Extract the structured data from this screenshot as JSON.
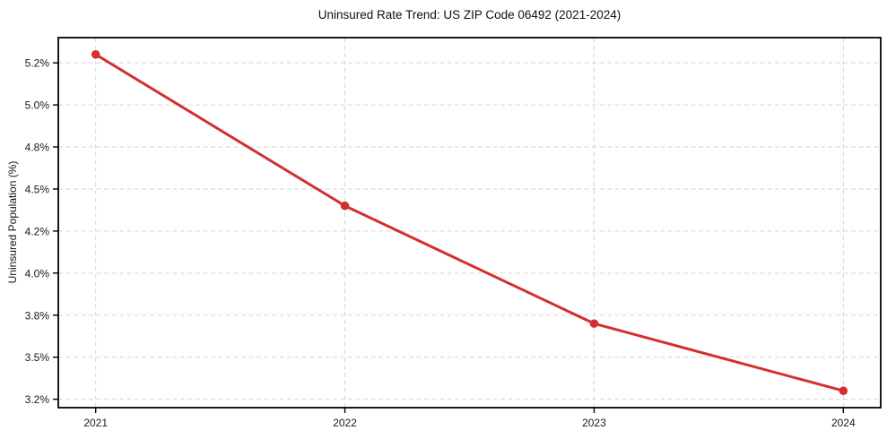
{
  "chart_data": {
    "type": "line",
    "title": "Uninsured Rate Trend: US ZIP Code 06492 (2021-2024)",
    "xlabel": "",
    "ylabel": "Uninsured Population (%)",
    "x": [
      2021,
      2022,
      2023,
      2024
    ],
    "values": [
      5.3,
      4.4,
      3.7,
      3.3
    ],
    "xlim": [
      2020.85,
      2024.15
    ],
    "ylim": [
      3.2,
      5.4
    ],
    "xticks": {
      "values": [
        2021,
        2022,
        2023,
        2024
      ],
      "labels": [
        "2021",
        "2022",
        "2023",
        "2024"
      ]
    },
    "yticks": {
      "values": [
        3.25,
        3.5,
        3.75,
        4.0,
        4.25,
        4.5,
        4.75,
        5.0,
        5.25
      ],
      "labels": [
        "3.2%",
        "3.5%",
        "3.8%",
        "4.0%",
        "4.2%",
        "4.5%",
        "4.8%",
        "5.0%",
        "5.2%"
      ]
    },
    "grid": "dashed",
    "legend": "none",
    "colors": {
      "line": "#d32f2f",
      "marker": "#d32f2f",
      "grid": "#d6d6d6",
      "spine": "#000000",
      "tick_label": "#1a1a1a",
      "background": "#ffffff"
    },
    "marker": "circle"
  }
}
